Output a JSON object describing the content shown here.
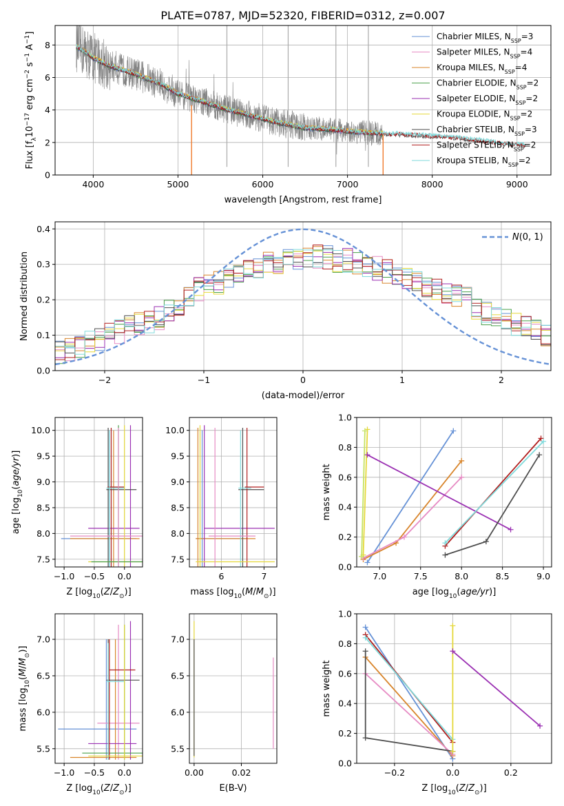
{
  "figure": {
    "title": "PLATE=0787, MJD=52320, FIBERID=0312, z=0.007"
  },
  "colors": {
    "chab_miles": "#6591d6",
    "salp_miles": "#e68ac3",
    "krou_miles": "#d8842a",
    "chab_elodie": "#4aa04a",
    "salp_elodie": "#9a2fb2",
    "krou_elodie": "#e5d83a",
    "chab_stelib": "#4d4d4d",
    "salp_stelib": "#b01c1c",
    "krou_stelib": "#7fdadb",
    "data": "#808080",
    "lime": "#c5e262",
    "orange": "#f07a2b"
  },
  "legend_models": [
    {
      "key": "chab_miles",
      "label": "Chabrier MILES, N",
      "sub": "SSP",
      "tail": "=3"
    },
    {
      "key": "salp_miles",
      "label": "Salpeter MILES, N",
      "sub": "SSP",
      "tail": "=4"
    },
    {
      "key": "krou_miles",
      "label": "Kroupa MILES, N",
      "sub": "SSP",
      "tail": "=4"
    },
    {
      "key": "chab_elodie",
      "label": "Chabrier ELODIE, N",
      "sub": "SSP",
      "tail": "=2"
    },
    {
      "key": "salp_elodie",
      "label": "Salpeter ELODIE, N",
      "sub": "SSP",
      "tail": "=2"
    },
    {
      "key": "krou_elodie",
      "label": "Kroupa ELODIE, N",
      "sub": "SSP",
      "tail": "=2"
    },
    {
      "key": "chab_stelib",
      "label": "Chabrier STELIB, N",
      "sub": "SSP",
      "tail": "=3"
    },
    {
      "key": "salp_stelib",
      "label": "Salpeter STELIB, N",
      "sub": "SSP",
      "tail": "=2"
    },
    {
      "key": "krou_stelib",
      "label": "Kroupa STELIB, N",
      "sub": "SSP",
      "tail": "=2"
    }
  ],
  "chart_data": [
    {
      "id": "spectrum",
      "type": "line",
      "xlabel": "wavelength [Angstrom, rest frame]",
      "ylabel": "Flux [f_λ 10^-17 erg cm^-2 s^-1 A^-1]",
      "xlim": [
        3550,
        9400
      ],
      "ylim": [
        0,
        9.2
      ],
      "xticks": [
        4000,
        5000,
        6000,
        7000,
        8000,
        9000
      ],
      "yticks": [
        0,
        2,
        4,
        6,
        8
      ],
      "continuum_x": [
        3800,
        3900,
        4000,
        4200,
        4500,
        4800,
        5000,
        5300,
        5600,
        5900,
        6200,
        6500,
        6800,
        7100,
        7400,
        7700,
        8000,
        8300,
        8600,
        8900,
        9100
      ],
      "continuum_y": [
        7.9,
        7.6,
        7.2,
        6.7,
        6.2,
        5.6,
        5.0,
        4.5,
        4.0,
        3.6,
        3.2,
        2.9,
        2.8,
        2.65,
        2.55,
        2.5,
        2.4,
        2.3,
        2.1,
        1.9,
        1.85
      ],
      "data_xmax": 7420,
      "sky_lines": [
        5577,
        6300,
        6863,
        7246
      ]
    },
    {
      "id": "residuals",
      "type": "histogram",
      "xlabel": "(data-model)/error",
      "ylabel": "Normed distribution",
      "xlim": [
        -2.5,
        2.5
      ],
      "ylim": [
        0,
        0.42
      ],
      "xticks": [
        -2,
        -1,
        0,
        1,
        2
      ],
      "yticks": [
        0.0,
        0.1,
        0.2,
        0.3,
        0.4
      ],
      "legend": "N(0,1)",
      "bin_width": 0.1,
      "base_shape": [
        0.05,
        0.06,
        0.07,
        0.08,
        0.09,
        0.1,
        0.11,
        0.12,
        0.13,
        0.14,
        0.15,
        0.17,
        0.19,
        0.21,
        0.23,
        0.24,
        0.25,
        0.26,
        0.27,
        0.28,
        0.29,
        0.3,
        0.3,
        0.31,
        0.31,
        0.32,
        0.32,
        0.32,
        0.31,
        0.31,
        0.3,
        0.3,
        0.29,
        0.28,
        0.27,
        0.26,
        0.25,
        0.24,
        0.23,
        0.22,
        0.21,
        0.2,
        0.18,
        0.16,
        0.15,
        0.14,
        0.13,
        0.12,
        0.11,
        0.1
      ]
    },
    {
      "id": "age_z",
      "type": "errorbar",
      "xlabel": "Z [log10(Z/Z⊙)]",
      "ylabel": "age [log10(age/yr)]",
      "xlim": [
        -1.15,
        0.3
      ],
      "ylim": [
        7.35,
        10.25
      ],
      "xticks": [
        -1.0,
        -0.5,
        0.0
      ],
      "yticks": [
        7.5,
        8.0,
        8.5,
        9.0,
        9.5,
        10.0
      ],
      "points": [
        {
          "c": "chab_miles",
          "x": -0.25,
          "y": 7.9,
          "xe": [
            -1.05,
            0.2
          ],
          "ye": [
            7.35,
            10.0
          ]
        },
        {
          "c": "krou_miles",
          "x": -0.18,
          "y": 7.9,
          "xe": [
            -0.9,
            0.25
          ],
          "ye": [
            7.35,
            10.0
          ]
        },
        {
          "c": "salp_elodie",
          "x": 0.1,
          "y": 8.1,
          "xe": [
            -0.6,
            0.25
          ],
          "ye": [
            7.35,
            10.1
          ]
        },
        {
          "c": "chab_stelib",
          "x": -0.27,
          "y": 8.85,
          "xe": [
            -0.3,
            0.2
          ],
          "ye": [
            7.35,
            10.05
          ]
        },
        {
          "c": "salp_stelib",
          "x": -0.22,
          "y": 8.9,
          "xe": [
            -0.28,
            0.0
          ],
          "ye": [
            7.35,
            10.05
          ]
        },
        {
          "c": "krou_stelib",
          "x": -0.25,
          "y": 8.88,
          "xe": [
            -0.3,
            0.0
          ],
          "ye": [
            7.35,
            10.0
          ]
        },
        {
          "c": "krou_elodie",
          "x": 0.0,
          "y": 7.45,
          "xe": [
            -0.6,
            0.3
          ],
          "ye": [
            7.35,
            10.1
          ]
        },
        {
          "c": "chab_elodie",
          "x": -0.1,
          "y": 7.45,
          "xe": [
            -0.55,
            0.3
          ],
          "ye": [
            7.35,
            10.1
          ]
        },
        {
          "c": "salp_miles",
          "x": -0.1,
          "y": 7.95,
          "xe": [
            -0.9,
            0.3
          ],
          "ye": [
            7.35,
            10.05
          ]
        }
      ]
    },
    {
      "id": "age_mass",
      "type": "errorbar",
      "xlabel": "mass [log10(M/M⊙)]",
      "ylabel": "",
      "xlim": [
        5.25,
        7.3
      ],
      "ylim": [
        7.35,
        10.25
      ],
      "xticks": [
        6,
        7
      ],
      "yticks": [
        7.5,
        8.0,
        8.5,
        9.0,
        9.5,
        10.0
      ],
      "points": [
        {
          "c": "chab_miles",
          "x": 5.55,
          "y": 7.9,
          "xe": [
            5.4,
            6.6
          ],
          "ye": [
            7.35,
            10.0
          ]
        },
        {
          "c": "krou_miles",
          "x": 5.45,
          "y": 7.9,
          "xe": [
            5.4,
            6.8
          ],
          "ye": [
            7.35,
            10.05
          ]
        },
        {
          "c": "salp_elodie",
          "x": 5.6,
          "y": 8.1,
          "xe": [
            5.6,
            7.25
          ],
          "ye": [
            7.35,
            10.1
          ]
        },
        {
          "c": "chab_stelib",
          "x": 6.5,
          "y": 8.85,
          "xe": [
            6.4,
            7.0
          ],
          "ye": [
            7.35,
            10.05
          ]
        },
        {
          "c": "salp_stelib",
          "x": 6.6,
          "y": 8.9,
          "xe": [
            6.55,
            7.0
          ],
          "ye": [
            7.35,
            10.05
          ]
        },
        {
          "c": "krou_stelib",
          "x": 6.45,
          "y": 8.88,
          "xe": [
            6.4,
            6.7
          ],
          "ye": [
            7.35,
            10.0
          ]
        },
        {
          "c": "krou_elodie",
          "x": 5.5,
          "y": 7.45,
          "xe": [
            5.4,
            7.25
          ],
          "ye": [
            7.35,
            10.1
          ]
        },
        {
          "c": "salp_miles",
          "x": 5.85,
          "y": 7.95,
          "xe": [
            5.7,
            6.8
          ],
          "ye": [
            7.35,
            10.05
          ]
        }
      ]
    },
    {
      "id": "weight_age",
      "type": "line",
      "xlabel": "age [log10(age/yr)]",
      "ylabel": "mass weight",
      "xlim": [
        6.72,
        9.1
      ],
      "ylim": [
        0,
        1.0
      ],
      "xticks": [
        7.0,
        7.5,
        8.0,
        8.5,
        9.0
      ],
      "yticks": [
        0.0,
        0.2,
        0.4,
        0.6,
        0.8,
        1.0
      ],
      "series": [
        {
          "c": "chab_miles",
          "x": [
            6.85,
            7.9
          ],
          "y": [
            0.03,
            0.91
          ]
        },
        {
          "c": "krou_miles",
          "x": [
            6.8,
            7.2,
            8.0
          ],
          "y": [
            0.05,
            0.16,
            0.71
          ]
        },
        {
          "c": "salp_miles",
          "x": [
            6.8,
            7.3,
            8.0
          ],
          "y": [
            0.06,
            0.2,
            0.6
          ]
        },
        {
          "c": "krou_elodie",
          "x": [
            6.8,
            6.85
          ],
          "y": [
            0.08,
            0.92
          ]
        },
        {
          "c": "lime",
          "x": [
            6.78,
            6.82
          ],
          "y": [
            0.07,
            0.91
          ]
        },
        {
          "c": "salp_elodie",
          "x": [
            6.85,
            8.6
          ],
          "y": [
            0.75,
            0.25
          ]
        },
        {
          "c": "chab_stelib",
          "x": [
            7.8,
            8.3,
            8.95
          ],
          "y": [
            0.08,
            0.17,
            0.75
          ]
        },
        {
          "c": "salp_stelib",
          "x": [
            7.8,
            8.97
          ],
          "y": [
            0.14,
            0.86
          ]
        },
        {
          "c": "krou_stelib",
          "x": [
            7.8,
            9.0
          ],
          "y": [
            0.16,
            0.84
          ]
        }
      ]
    },
    {
      "id": "mass_z",
      "type": "errorbar",
      "xlabel": "Z [log10(Z/Z⊙)]",
      "ylabel": "mass [log10(M/M⊙)]",
      "xlim": [
        -1.15,
        0.3
      ],
      "ylim": [
        5.3,
        7.35
      ],
      "xticks": [
        -1.0,
        -0.5,
        0.0
      ],
      "yticks": [
        5.5,
        6.0,
        6.5,
        7.0
      ],
      "points": [
        {
          "c": "chab_miles",
          "x": -0.3,
          "y": 5.77,
          "xe": [
            -1.1,
            0.2
          ],
          "ye": [
            5.35,
            7.0
          ]
        },
        {
          "c": "salp_miles",
          "x": -0.1,
          "y": 5.85,
          "xe": [
            -0.45,
            0.25
          ],
          "ye": [
            5.35,
            7.2
          ]
        },
        {
          "c": "krou_miles",
          "x": -0.15,
          "y": 5.38,
          "xe": [
            -0.9,
            0.2
          ],
          "ye": [
            5.35,
            7.0
          ]
        },
        {
          "c": "salp_elodie",
          "x": 0.1,
          "y": 5.57,
          "xe": [
            -0.6,
            0.2
          ],
          "ye": [
            5.35,
            7.25
          ]
        },
        {
          "c": "chab_elodie",
          "x": 0.0,
          "y": 5.44,
          "xe": [
            -0.7,
            0.3
          ],
          "ye": [
            5.35,
            7.2
          ]
        },
        {
          "c": "salp_stelib",
          "x": -0.25,
          "y": 6.58,
          "xe": [
            -0.25,
            0.18
          ],
          "ye": [
            5.35,
            7.0
          ]
        },
        {
          "c": "chab_stelib",
          "x": -0.27,
          "y": 6.44,
          "xe": [
            -0.3,
            0.25
          ],
          "ye": [
            5.35,
            7.0
          ]
        },
        {
          "c": "krou_stelib",
          "x": -0.27,
          "y": 6.42,
          "xe": [
            -0.3,
            0.0
          ],
          "ye": [
            5.35,
            6.95
          ]
        },
        {
          "c": "krou_elodie",
          "x": 0.0,
          "y": 5.4,
          "xe": [
            -0.6,
            0.3
          ],
          "ye": [
            5.35,
            7.2
          ]
        }
      ]
    },
    {
      "id": "mass_ebv",
      "type": "errorbar",
      "xlabel": "E(B-V)",
      "ylabel": "",
      "xlim": [
        -0.002,
        0.035
      ],
      "ylim": [
        5.3,
        7.35
      ],
      "xticks": [
        0.0,
        0.02
      ],
      "yticks": [
        5.5,
        6.0,
        6.5,
        7.0
      ],
      "points": [
        {
          "c": "krou_elodie",
          "x": 0.0,
          "y": 6.3,
          "xe": [
            0.0,
            0.0
          ],
          "ye": [
            5.38,
            7.25
          ]
        },
        {
          "c": "chab_stelib",
          "x": 0.0,
          "y": 6.4,
          "xe": [
            0.0,
            0.0
          ],
          "ye": [
            5.4,
            7.0
          ]
        },
        {
          "c": "salp_miles",
          "x": 0.0335,
          "y": 6.1,
          "xe": [
            0.0335,
            0.0335
          ],
          "ye": [
            5.5,
            6.75
          ]
        }
      ]
    },
    {
      "id": "weight_z",
      "type": "line",
      "xlabel": "Z [log10(Z/Z⊙)]",
      "ylabel": "mass weight",
      "xlim": [
        -0.33,
        0.34
      ],
      "ylim": [
        0,
        1.0
      ],
      "xticks": [
        -0.2,
        0.0,
        0.2
      ],
      "yticks": [
        0.0,
        0.2,
        0.4,
        0.6,
        0.8,
        1.0
      ],
      "series": [
        {
          "c": "chab_miles",
          "x": [
            -0.3,
            0.0
          ],
          "y": [
            0.91,
            0.03
          ]
        },
        {
          "c": "salp_stelib",
          "x": [
            -0.3,
            0.0
          ],
          "y": [
            0.86,
            0.14
          ]
        },
        {
          "c": "krou_stelib",
          "x": [
            -0.3,
            0.0
          ],
          "y": [
            0.84,
            0.16
          ]
        },
        {
          "c": "krou_miles",
          "x": [
            -0.3,
            0.0
          ],
          "y": [
            0.71,
            0.05
          ]
        },
        {
          "c": "salp_miles",
          "x": [
            -0.3,
            0.0
          ],
          "y": [
            0.6,
            0.06
          ]
        },
        {
          "c": "chab_stelib",
          "x": [
            -0.3,
            -0.3,
            0.0,
            0.0
          ],
          "y": [
            0.75,
            0.17,
            0.08,
            0.08
          ]
        },
        {
          "c": "krou_elodie",
          "x": [
            0.0,
            0.0
          ],
          "y": [
            0.92,
            0.08
          ]
        },
        {
          "c": "salp_elodie",
          "x": [
            0.0,
            0.3
          ],
          "y": [
            0.75,
            0.25
          ]
        }
      ]
    }
  ]
}
